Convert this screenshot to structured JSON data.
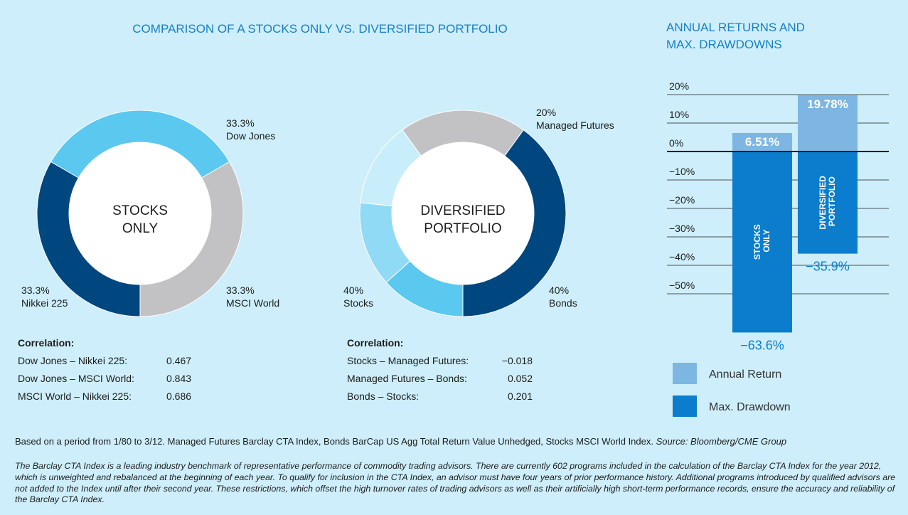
{
  "header": {
    "title": "COMPARISON OF A STOCKS ONLY VS. DIVERSIFIED PORTFOLIO"
  },
  "chart_data": [
    {
      "type": "donut",
      "center_label": [
        "STOCKS",
        "ONLY"
      ],
      "categories": [
        "Dow Jones",
        "MSCI World",
        "Nikkei 225"
      ],
      "values": [
        33.3,
        33.3,
        33.3
      ],
      "value_labels": [
        "33.3%",
        "33.3%",
        "33.3%"
      ],
      "colors": [
        "#5bc8f0",
        "#c2c2c4",
        "#00467f"
      ],
      "correlation": {
        "title": "Correlation:",
        "rows": [
          [
            "Dow Jones – Nikkei 225:",
            "0.467"
          ],
          [
            "Dow Jones – MSCI World:",
            "0.843"
          ],
          [
            "MSCI World – Nikkei 225:",
            "0.686"
          ]
        ]
      }
    },
    {
      "type": "donut",
      "center_label": [
        "DIVERSIFIED",
        "PORTFOLIO"
      ],
      "categories": [
        "Managed Futures",
        "Bonds",
        "Stocks"
      ],
      "values": [
        20,
        40,
        40
      ],
      "value_labels": [
        "20%",
        "40%",
        "40%"
      ],
      "colors": [
        "#c2c2c4",
        "#00467f",
        [
          "#5bc8f0",
          "#91daf5",
          "#c9eefb"
        ]
      ],
      "correlation": {
        "title": "Correlation:",
        "rows": [
          [
            "Stocks – Managed Futures:",
            "−0.018"
          ],
          [
            "Managed Futures – Bonds:",
            "0.052"
          ],
          [
            "Bonds – Stocks:",
            "0.201"
          ]
        ]
      }
    },
    {
      "type": "bar",
      "title": [
        "ANNUAL RETURNS AND",
        "MAX. DRAWDOWNS"
      ],
      "categories": [
        "STOCKS ONLY",
        "DIVERSIFIED PORTFOLIO"
      ],
      "series": [
        {
          "name": "Annual Return",
          "color": "#7db6e2",
          "values": [
            6.51,
            19.78
          ],
          "value_labels": [
            "6.51%",
            "19.78%"
          ]
        },
        {
          "name": "Max. Drawdown",
          "color": "#0b7dcc",
          "values": [
            -63.6,
            -35.9
          ],
          "value_labels": [
            "−63.6%",
            "−35.9%"
          ]
        }
      ],
      "ylim": [
        -66,
        22
      ],
      "yticks": [
        {
          "value": 20,
          "label": "20%"
        },
        {
          "value": 10,
          "label": "10%"
        },
        {
          "value": 0,
          "label": "0%"
        },
        {
          "value": -10,
          "label": "−10%"
        },
        {
          "value": -20,
          "label": "−20%"
        },
        {
          "value": -30,
          "label": "−30%"
        },
        {
          "value": -40,
          "label": "−40%"
        },
        {
          "value": -50,
          "label": "−50%"
        }
      ],
      "grid": true,
      "legend": "bottom"
    }
  ],
  "footnotes": {
    "basis": "Based on a period from 1/80 to 3/12. Managed Futures Barclay CTA Index, Bonds BarCap US Agg Total Return Value Unhedged, Stocks MSCI World Index.",
    "source": "Source: Bloomberg/CME Group",
    "index_note": "The Barclay CTA Index is a leading industry benchmark of representative performance of commodity trading advisors. There are currently 602 programs included in the calculation of the Barclay CTA Index for the year 2012, which is unweighted and rebalanced at the beginning of each year. To qualify for inclusion in the CTA Index, an advisor must have four years of prior performance history. Additional programs introduced by qualified advisors are not added to the Index until after their second year. These restrictions, which offset the high turnover rates of trading advisors as well as their artificially high short-term performance records, ensure the accuracy and reliability of the Barclay CTA Index."
  }
}
